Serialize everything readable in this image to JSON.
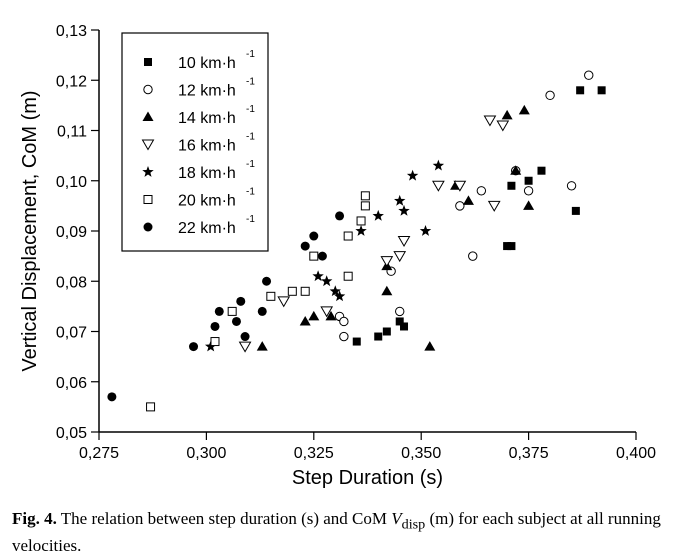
{
  "chart_data": {
    "type": "scatter",
    "title": "",
    "xlabel": "Step Duration (s)",
    "ylabel": "Vertical Displacement, CoM (m)",
    "xlim": [
      0.275,
      0.4
    ],
    "ylim": [
      0.05,
      0.13
    ],
    "xticks": [
      0.275,
      0.3,
      0.325,
      0.35,
      0.375,
      0.4
    ],
    "xtick_labels": [
      "0,275",
      "0,300",
      "0,325",
      "0,350",
      "0,375",
      "0,400"
    ],
    "yticks": [
      0.05,
      0.06,
      0.07,
      0.08,
      0.09,
      0.1,
      0.11,
      0.12,
      0.13
    ],
    "ytick_labels": [
      "0,05",
      "0,06",
      "0,07",
      "0,08",
      "0,09",
      "0,10",
      "0,11",
      "0,12",
      "0,13"
    ],
    "legend_position": "top-left",
    "series": [
      {
        "name": "10 km·h",
        "unit_exp": "-1",
        "marker": "square-filled",
        "points": [
          [
            0.335,
            0.068
          ],
          [
            0.34,
            0.069
          ],
          [
            0.342,
            0.07
          ],
          [
            0.345,
            0.072
          ],
          [
            0.346,
            0.071
          ],
          [
            0.37,
            0.087
          ],
          [
            0.371,
            0.087
          ],
          [
            0.371,
            0.099
          ],
          [
            0.375,
            0.1
          ],
          [
            0.378,
            0.102
          ],
          [
            0.386,
            0.094
          ],
          [
            0.387,
            0.118
          ],
          [
            0.392,
            0.118
          ]
        ]
      },
      {
        "name": "12 km·h",
        "unit_exp": "-1",
        "marker": "circle-open",
        "points": [
          [
            0.331,
            0.073
          ],
          [
            0.332,
            0.072
          ],
          [
            0.332,
            0.069
          ],
          [
            0.343,
            0.082
          ],
          [
            0.345,
            0.074
          ],
          [
            0.359,
            0.095
          ],
          [
            0.362,
            0.085
          ],
          [
            0.364,
            0.098
          ],
          [
            0.372,
            0.102
          ],
          [
            0.375,
            0.098
          ],
          [
            0.38,
            0.117
          ],
          [
            0.385,
            0.099
          ],
          [
            0.389,
            0.121
          ]
        ]
      },
      {
        "name": "14 km·h",
        "unit_exp": "-1",
        "marker": "triangle-filled",
        "points": [
          [
            0.313,
            0.067
          ],
          [
            0.323,
            0.072
          ],
          [
            0.325,
            0.073
          ],
          [
            0.329,
            0.073
          ],
          [
            0.342,
            0.083
          ],
          [
            0.342,
            0.078
          ],
          [
            0.352,
            0.067
          ],
          [
            0.358,
            0.099
          ],
          [
            0.361,
            0.096
          ],
          [
            0.37,
            0.113
          ],
          [
            0.372,
            0.102
          ],
          [
            0.374,
            0.114
          ],
          [
            0.375,
            0.095
          ]
        ]
      },
      {
        "name": "16 km·h",
        "unit_exp": "-1",
        "marker": "triangle-open",
        "points": [
          [
            0.309,
            0.067
          ],
          [
            0.318,
            0.076
          ],
          [
            0.328,
            0.074
          ],
          [
            0.342,
            0.084
          ],
          [
            0.345,
            0.085
          ],
          [
            0.346,
            0.088
          ],
          [
            0.354,
            0.099
          ],
          [
            0.359,
            0.099
          ],
          [
            0.366,
            0.112
          ],
          [
            0.367,
            0.095
          ],
          [
            0.369,
            0.111
          ]
        ]
      },
      {
        "name": "18 km·h",
        "unit_exp": "-1",
        "marker": "star-filled",
        "points": [
          [
            0.301,
            0.067
          ],
          [
            0.326,
            0.081
          ],
          [
            0.328,
            0.08
          ],
          [
            0.33,
            0.078
          ],
          [
            0.331,
            0.077
          ],
          [
            0.336,
            0.09
          ],
          [
            0.34,
            0.093
          ],
          [
            0.345,
            0.096
          ],
          [
            0.346,
            0.094
          ],
          [
            0.348,
            0.101
          ],
          [
            0.351,
            0.09
          ],
          [
            0.354,
            0.103
          ]
        ]
      },
      {
        "name": "20 km·h",
        "unit_exp": "-1",
        "marker": "square-open",
        "points": [
          [
            0.287,
            0.055
          ],
          [
            0.302,
            0.068
          ],
          [
            0.306,
            0.074
          ],
          [
            0.315,
            0.077
          ],
          [
            0.32,
            0.078
          ],
          [
            0.323,
            0.078
          ],
          [
            0.325,
            0.085
          ],
          [
            0.333,
            0.081
          ],
          [
            0.333,
            0.089
          ],
          [
            0.336,
            0.092
          ],
          [
            0.337,
            0.095
          ],
          [
            0.337,
            0.097
          ]
        ]
      },
      {
        "name": "22 km·h",
        "unit_exp": "-1",
        "marker": "circle-filled",
        "points": [
          [
            0.278,
            0.057
          ],
          [
            0.297,
            0.067
          ],
          [
            0.302,
            0.071
          ],
          [
            0.303,
            0.074
          ],
          [
            0.307,
            0.072
          ],
          [
            0.308,
            0.076
          ],
          [
            0.309,
            0.069
          ],
          [
            0.313,
            0.074
          ],
          [
            0.314,
            0.08
          ],
          [
            0.323,
            0.087
          ],
          [
            0.325,
            0.089
          ],
          [
            0.327,
            0.085
          ],
          [
            0.331,
            0.093
          ]
        ]
      }
    ]
  },
  "caption": {
    "label": "Fig. 4.",
    "text_before": " The relation between step duration (s) and CoM ",
    "var": "V",
    "var_sub": "disp",
    "text_after": " (m) for each subject at all running velocities."
  }
}
